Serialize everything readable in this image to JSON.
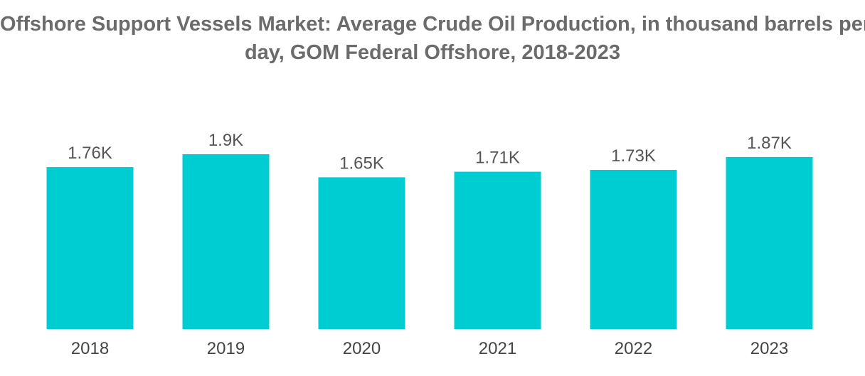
{
  "chart_data": {
    "type": "bar",
    "title_lines": [
      "Offshore Support Vessels Market: Average Crude Oil Production, in thousand barrels per",
      "day, GOM Federal Offshore, 2018-2023"
    ],
    "categories": [
      "2018",
      "2019",
      "2020",
      "2021",
      "2022",
      "2023"
    ],
    "values": [
      1.76,
      1.9,
      1.65,
      1.71,
      1.73,
      1.87
    ],
    "value_labels": [
      "1.76K",
      "1.9K",
      "1.65K",
      "1.71K",
      "1.73K",
      "1.87K"
    ],
    "xlabel": "",
    "ylabel": "",
    "grid": false,
    "legend": "none",
    "bar_color": "#00cdd1"
  }
}
